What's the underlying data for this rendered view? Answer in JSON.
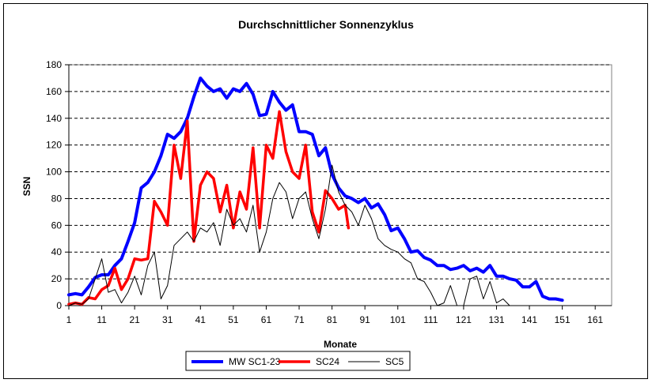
{
  "chart_data": {
    "type": "line",
    "title": "Durchschnittlicher Sonnenzyklus",
    "xlabel": "Monate",
    "ylabel": "SSN",
    "xlim": [
      1,
      166
    ],
    "ylim": [
      0,
      180
    ],
    "x_ticks": [
      1,
      11,
      21,
      31,
      41,
      51,
      61,
      71,
      81,
      91,
      101,
      111,
      121,
      131,
      141,
      151,
      161
    ],
    "y_ticks": [
      0,
      20,
      40,
      60,
      80,
      100,
      120,
      140,
      160,
      180
    ],
    "grid": "horizontal-dashed",
    "legend_position": "bottom",
    "series": [
      {
        "name": "MW SC1-23",
        "color": "#0000ff",
        "x": [
          1,
          3,
          5,
          7,
          9,
          11,
          13,
          15,
          17,
          19,
          21,
          23,
          25,
          27,
          29,
          31,
          33,
          35,
          37,
          39,
          41,
          43,
          45,
          47,
          49,
          51,
          53,
          55,
          57,
          59,
          61,
          63,
          65,
          67,
          69,
          71,
          73,
          75,
          77,
          79,
          81,
          83,
          85,
          87,
          89,
          91,
          93,
          95,
          97,
          99,
          101,
          103,
          105,
          107,
          109,
          111,
          113,
          115,
          117,
          119,
          121,
          123,
          125,
          127,
          129,
          131,
          133,
          135,
          137,
          139,
          141,
          143,
          145,
          147,
          149,
          151
        ],
        "values": [
          8,
          9,
          8,
          14,
          21,
          23,
          23,
          30,
          35,
          48,
          62,
          88,
          92,
          100,
          112,
          128,
          125,
          130,
          140,
          156,
          170,
          164,
          160,
          162,
          155,
          162,
          160,
          166,
          158,
          142,
          143,
          160,
          152,
          146,
          150,
          130,
          130,
          128,
          112,
          118,
          98,
          88,
          82,
          80,
          77,
          80,
          73,
          76,
          68,
          56,
          58,
          50,
          40,
          41,
          36,
          34,
          30,
          30,
          27,
          28,
          30,
          26,
          28,
          25,
          30,
          22,
          22,
          20,
          19,
          14,
          14,
          18,
          7,
          5,
          5,
          4
        ]
      },
      {
        "name": "SC24",
        "color": "#ff0000",
        "x": [
          1,
          3,
          5,
          7,
          9,
          11,
          13,
          15,
          17,
          19,
          21,
          23,
          25,
          27,
          29,
          31,
          33,
          35,
          37,
          39,
          41,
          43,
          45,
          47,
          49,
          51,
          53,
          55,
          57,
          59,
          61,
          63,
          65,
          67,
          69,
          71,
          73,
          75,
          77,
          79,
          81,
          83,
          85,
          86
        ],
        "values": [
          1,
          2,
          1,
          6,
          5,
          12,
          15,
          28,
          12,
          20,
          35,
          34,
          35,
          78,
          70,
          60,
          120,
          95,
          138,
          48,
          90,
          100,
          95,
          70,
          90,
          58,
          85,
          72,
          118,
          58,
          120,
          110,
          145,
          115,
          100,
          95,
          120,
          70,
          55,
          86,
          80,
          72,
          75,
          58
        ]
      },
      {
        "name": "SC5",
        "color": "#000000",
        "x": [
          1,
          3,
          5,
          7,
          9,
          11,
          13,
          15,
          17,
          19,
          21,
          23,
          25,
          27,
          29,
          31,
          33,
          35,
          37,
          39,
          41,
          43,
          45,
          47,
          49,
          51,
          53,
          55,
          57,
          59,
          61,
          63,
          65,
          67,
          69,
          71,
          73,
          75,
          77,
          79,
          81,
          83,
          85,
          87,
          89,
          91,
          93,
          95,
          97,
          99,
          101,
          103,
          105,
          107,
          109,
          111,
          113,
          115,
          117,
          119,
          121,
          123,
          125,
          127,
          129,
          131,
          133,
          135,
          137
        ],
        "values": [
          0,
          2,
          1,
          5,
          20,
          35,
          10,
          12,
          2,
          10,
          22,
          8,
          30,
          40,
          5,
          15,
          45,
          50,
          55,
          48,
          58,
          55,
          62,
          45,
          72,
          60,
          65,
          55,
          75,
          40,
          55,
          80,
          92,
          85,
          65,
          80,
          85,
          65,
          50,
          72,
          105,
          85,
          75,
          70,
          60,
          75,
          65,
          50,
          45,
          42,
          40,
          35,
          32,
          20,
          18,
          10,
          0,
          2,
          15,
          0,
          0,
          20,
          22,
          5,
          18,
          2,
          5,
          0,
          0
        ]
      }
    ]
  }
}
